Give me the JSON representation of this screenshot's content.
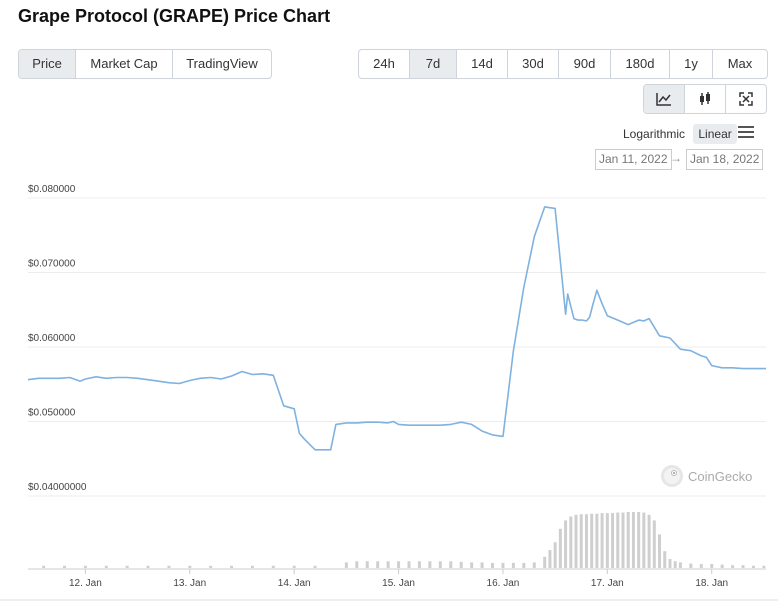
{
  "page": {
    "title": "Grape Protocol (GRAPE) Price Chart"
  },
  "type_tabs": [
    {
      "label": "Price",
      "active": true
    },
    {
      "label": "Market Cap",
      "active": false
    },
    {
      "label": "TradingView",
      "active": false
    }
  ],
  "range_tabs": [
    {
      "label": "24h",
      "active": false
    },
    {
      "label": "7d",
      "active": true
    },
    {
      "label": "14d",
      "active": false
    },
    {
      "label": "30d",
      "active": false
    },
    {
      "label": "90d",
      "active": false
    },
    {
      "label": "180d",
      "active": false
    },
    {
      "label": "1y",
      "active": false
    },
    {
      "label": "Max",
      "active": false
    }
  ],
  "view_tabs": [
    {
      "icon": "line-chart-icon",
      "active": true
    },
    {
      "icon": "candlestick-icon",
      "active": false
    },
    {
      "icon": "fullscreen-icon",
      "active": false
    }
  ],
  "scale": {
    "log_label": "Logarithmic",
    "linear_label": "Linear",
    "active": "Linear"
  },
  "date_range": {
    "from": "Jan 11, 2022",
    "arrow": "→",
    "to": "Jan 18, 2022"
  },
  "watermark": "CoinGecko",
  "colors": {
    "line": "#7fb2e0",
    "volume": "#cfcfcf",
    "grid": "#ececec",
    "axis": "#999999"
  },
  "chart_data": {
    "type": "line",
    "title": "",
    "xlabel": "",
    "ylabel": "",
    "y_ticks": [
      "$0.080000",
      "$0.070000",
      "$0.060000",
      "$0.050000",
      "$0.04000000"
    ],
    "y_tick_values": [
      0.08,
      0.07,
      0.06,
      0.05,
      0.04
    ],
    "ylim": [
      0.04,
      0.08
    ],
    "x_ticks": [
      "12. Jan",
      "13. Jan",
      "14. Jan",
      "15. Jan",
      "16. Jan",
      "17. Jan",
      "18. Jan"
    ],
    "x_tick_values": [
      1.0,
      2.0,
      3.0,
      4.0,
      5.0,
      6.0,
      7.0
    ],
    "xlim": [
      0.45,
      7.52
    ],
    "grid": true,
    "series": [
      {
        "x": [
          0.45,
          0.55,
          0.65,
          0.75,
          0.85,
          0.95,
          1.0,
          1.1,
          1.2,
          1.3,
          1.4,
          1.5,
          1.6,
          1.7,
          1.8,
          1.9,
          2.0,
          2.1,
          2.2,
          2.3,
          2.4,
          2.5,
          2.6,
          2.7,
          2.8,
          2.9,
          3.0,
          3.05,
          3.1,
          3.2,
          3.3,
          3.35,
          3.4,
          3.45,
          3.5,
          3.6,
          3.7,
          3.8,
          3.9,
          3.95,
          4.0,
          4.1,
          4.2,
          4.3,
          4.4,
          4.5,
          4.6,
          4.7,
          4.8,
          4.9,
          5.0,
          5.1,
          5.2,
          5.3,
          5.4,
          5.5,
          5.6,
          5.62,
          5.68,
          5.72,
          5.76,
          5.8,
          5.83,
          5.86,
          5.9,
          5.95,
          6.0,
          6.1,
          6.2,
          6.25,
          6.3,
          6.35,
          6.4,
          6.5,
          6.6,
          6.7,
          6.8,
          6.9,
          6.95,
          7.0,
          7.1,
          7.2,
          7.3,
          7.4,
          7.52
        ],
        "y": [
          0.0548,
          0.055,
          0.055,
          0.055,
          0.0551,
          0.0546,
          0.0549,
          0.0552,
          0.055,
          0.0551,
          0.0551,
          0.055,
          0.0548,
          0.0546,
          0.0544,
          0.0543,
          0.0547,
          0.055,
          0.0551,
          0.0549,
          0.0553,
          0.0559,
          0.0555,
          0.0556,
          0.0554,
          0.0513,
          0.0509,
          0.0476,
          0.0468,
          0.0454,
          0.0454,
          0.0454,
          0.0488,
          0.0489,
          0.049,
          0.049,
          0.0491,
          0.0491,
          0.049,
          0.0492,
          0.0488,
          0.0487,
          0.0487,
          0.0487,
          0.0487,
          0.0488,
          0.0491,
          0.0488,
          0.0479,
          0.0474,
          0.0472,
          0.0587,
          0.0672,
          0.074,
          0.078,
          0.0778,
          0.0636,
          0.0663,
          0.063,
          0.0628,
          0.0628,
          0.0627,
          0.0632,
          0.0648,
          0.0668,
          0.065,
          0.0634,
          0.0628,
          0.0622,
          0.0625,
          0.0628,
          0.0627,
          0.063,
          0.0607,
          0.0604,
          0.0589,
          0.0587,
          0.058,
          0.0578,
          0.0567,
          0.0564,
          0.0564,
          0.0563,
          0.0563,
          0.0563
        ]
      }
    ],
    "volume": {
      "x": [
        0.6,
        0.8,
        1.0,
        1.2,
        1.4,
        1.6,
        1.8,
        2.0,
        2.2,
        2.4,
        2.6,
        2.8,
        3.0,
        3.2,
        3.5,
        3.6,
        3.7,
        3.8,
        3.9,
        4.0,
        4.1,
        4.2,
        4.3,
        4.4,
        4.5,
        4.6,
        4.7,
        4.8,
        4.9,
        5.0,
        5.1,
        5.2,
        5.3,
        5.4,
        5.45,
        5.5,
        5.55,
        5.6,
        5.65,
        5.7,
        5.75,
        5.8,
        5.85,
        5.9,
        5.95,
        6.0,
        6.05,
        6.1,
        6.15,
        6.2,
        6.25,
        6.3,
        6.35,
        6.4,
        6.45,
        6.5,
        6.55,
        6.6,
        6.65,
        6.7,
        6.8,
        6.9,
        7.0,
        7.1,
        7.2,
        7.3,
        7.4,
        7.5
      ],
      "rel": [
        0.04,
        0.04,
        0.04,
        0.04,
        0.04,
        0.04,
        0.04,
        0.04,
        0.04,
        0.04,
        0.04,
        0.04,
        0.04,
        0.04,
        0.1,
        0.12,
        0.12,
        0.12,
        0.12,
        0.12,
        0.12,
        0.12,
        0.12,
        0.12,
        0.12,
        0.11,
        0.1,
        0.1,
        0.09,
        0.09,
        0.09,
        0.09,
        0.1,
        0.2,
        0.32,
        0.46,
        0.7,
        0.85,
        0.92,
        0.95,
        0.96,
        0.96,
        0.97,
        0.97,
        0.98,
        0.98,
        0.98,
        0.99,
        0.99,
        1.0,
        1.0,
        1.0,
        0.99,
        0.95,
        0.85,
        0.6,
        0.3,
        0.16,
        0.12,
        0.1,
        0.08,
        0.07,
        0.07,
        0.06,
        0.05,
        0.05,
        0.04,
        0.04
      ]
    }
  }
}
